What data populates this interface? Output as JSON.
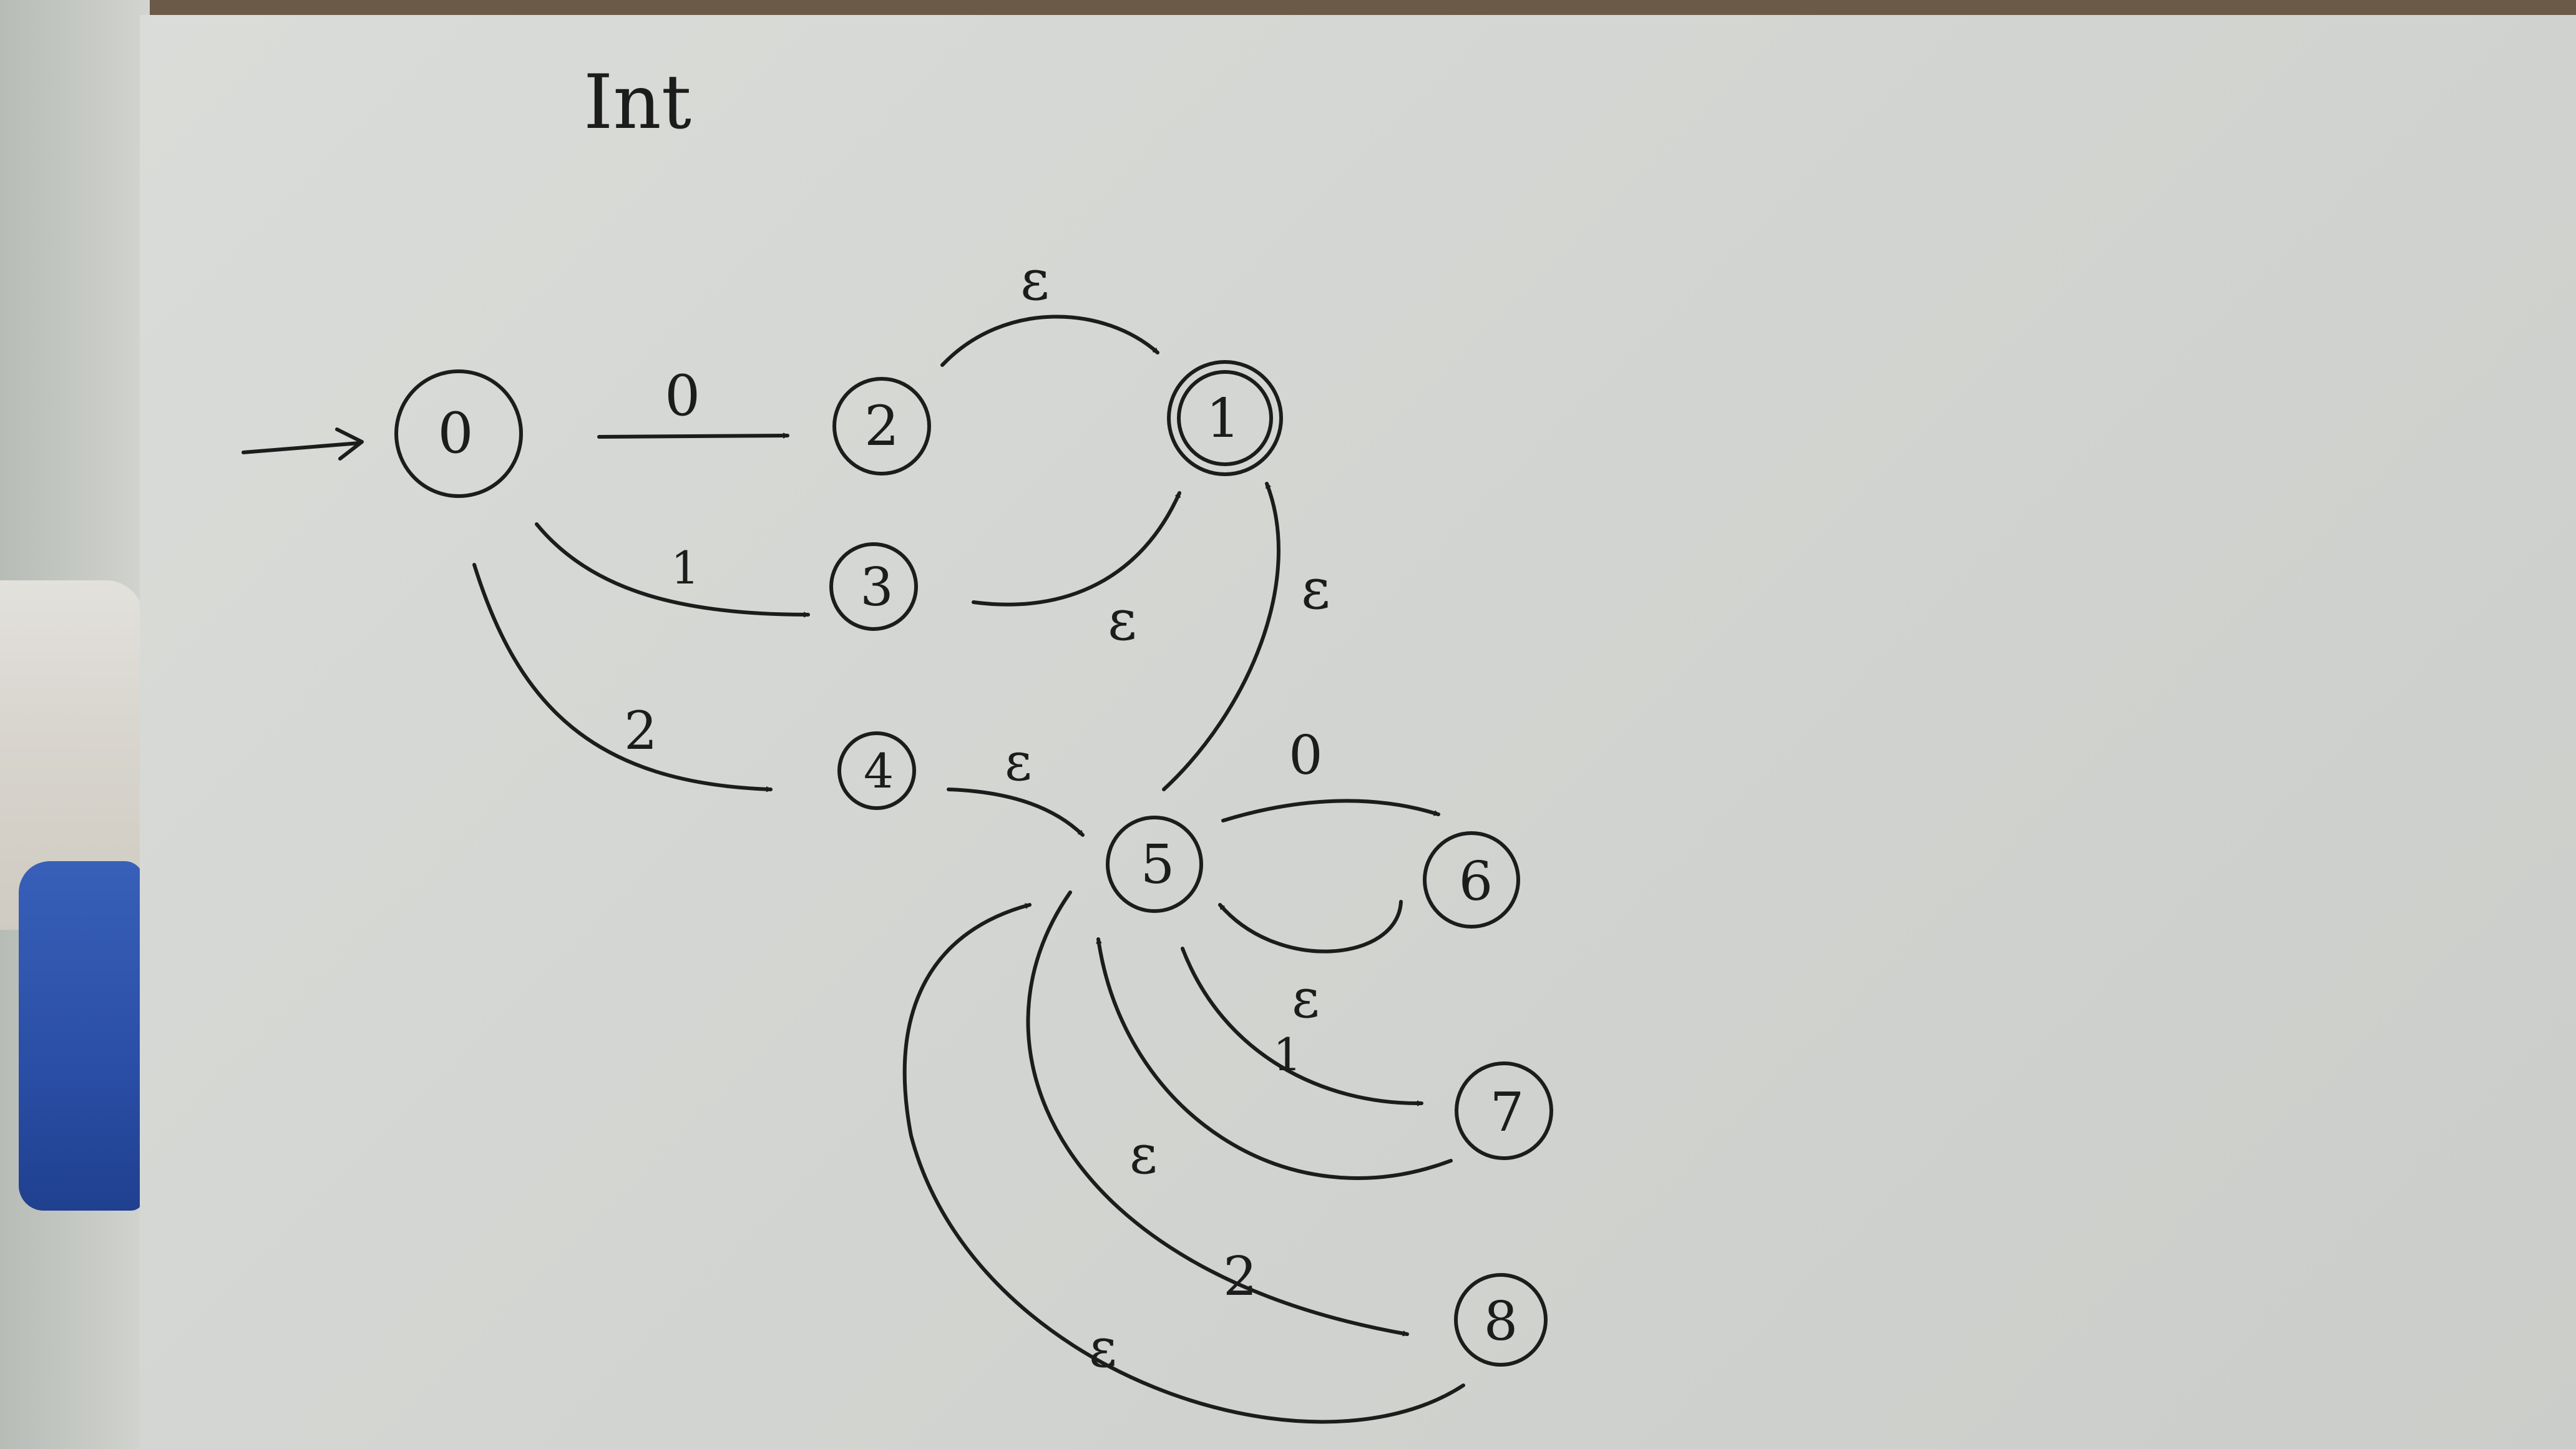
{
  "title": "Int",
  "states": [
    {
      "id": "state-0",
      "label": "0",
      "start": true
    },
    {
      "id": "state-2",
      "label": "2"
    },
    {
      "id": "state-1",
      "label": "1",
      "accepting": true
    },
    {
      "id": "state-3",
      "label": "3"
    },
    {
      "id": "state-4",
      "label": "4"
    },
    {
      "id": "state-5",
      "label": "5"
    },
    {
      "id": "state-6",
      "label": "6"
    },
    {
      "id": "state-7",
      "label": "7"
    },
    {
      "id": "state-8",
      "label": "8"
    }
  ],
  "transitions": [
    {
      "from": "0",
      "to": "2",
      "label": "0"
    },
    {
      "from": "0",
      "to": "3",
      "label": "1"
    },
    {
      "from": "0",
      "to": "4",
      "label": "2"
    },
    {
      "from": "2",
      "to": "1",
      "label": "ε"
    },
    {
      "from": "3",
      "to": "1",
      "label": "ε"
    },
    {
      "from": "5",
      "to": "1",
      "label": "ε"
    },
    {
      "from": "4",
      "to": "5",
      "label": "ε"
    },
    {
      "from": "5",
      "to": "6",
      "label": "0"
    },
    {
      "from": "6",
      "to": "5",
      "label": "ε"
    },
    {
      "from": "5",
      "to": "7",
      "label": "1"
    },
    {
      "from": "7",
      "to": "5",
      "label": "ε"
    },
    {
      "from": "5",
      "to": "8",
      "label": "2"
    },
    {
      "from": "8",
      "to": "5",
      "label": "ε"
    }
  ]
}
